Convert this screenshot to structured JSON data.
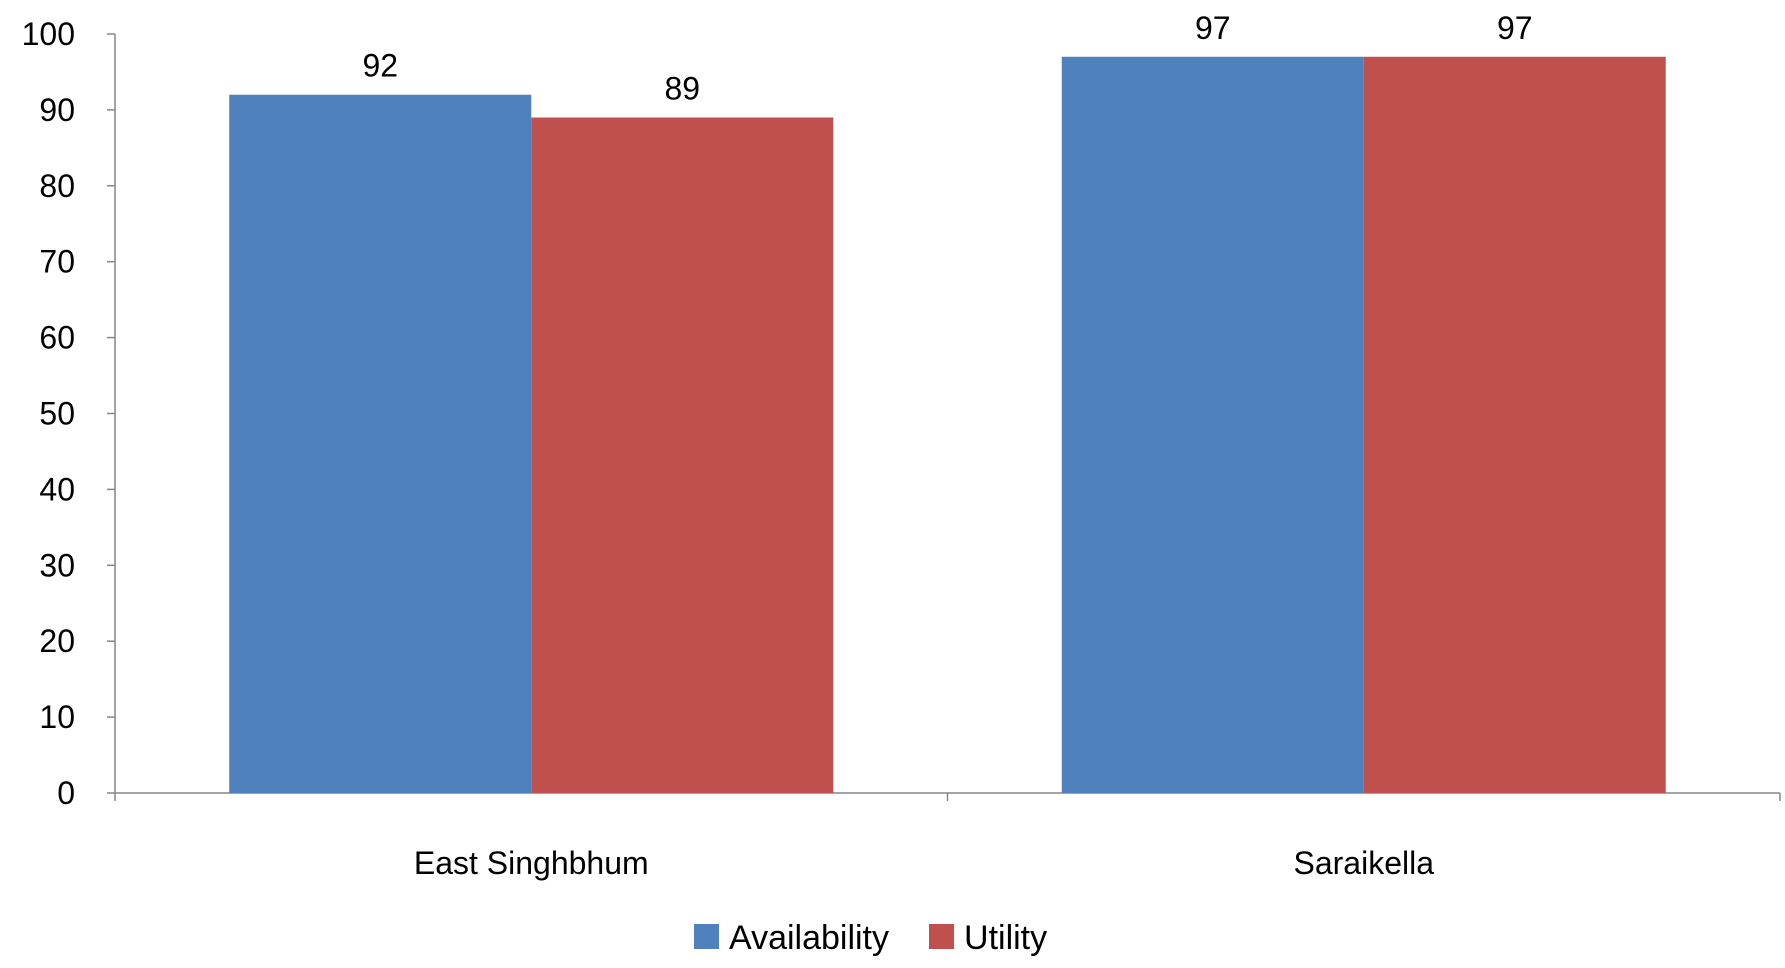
{
  "chart_data": {
    "type": "bar",
    "title": "",
    "xlabel": "",
    "ylabel": "",
    "categories": [
      "East Singhbhum",
      "Saraikella"
    ],
    "series": [
      {
        "name": "Availability",
        "color": "#4F81BD",
        "values": [
          92,
          97
        ]
      },
      {
        "name": "Utility",
        "color": "#C0504D",
        "values": [
          89,
          97
        ]
      }
    ],
    "ylim": [
      0,
      100
    ],
    "yticks": [
      0,
      10,
      20,
      30,
      40,
      50,
      60,
      70,
      80,
      90,
      100
    ],
    "grid": false,
    "data_labels": true,
    "legend_position": "bottom"
  }
}
